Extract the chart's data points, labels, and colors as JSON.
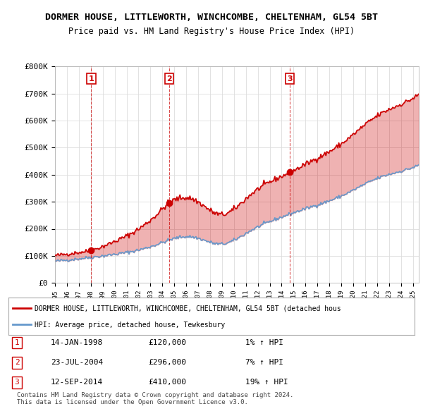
{
  "title_line1": "DORMER HOUSE, LITTLEWORTH, WINCHCOMBE, CHELTENHAM, GL54 5BT",
  "title_line2": "Price paid vs. HM Land Registry's House Price Index (HPI)",
  "ylabel": "",
  "ylim": [
    0,
    800000
  ],
  "yticks": [
    0,
    100000,
    200000,
    300000,
    400000,
    500000,
    600000,
    700000,
    800000
  ],
  "ytick_labels": [
    "£0",
    "£100K",
    "£200K",
    "£300K",
    "£400K",
    "£500K",
    "£600K",
    "£700K",
    "£800K"
  ],
  "sale_dates": [
    1998.04,
    2004.56,
    2014.7
  ],
  "sale_prices": [
    120000,
    296000,
    410000
  ],
  "sale_labels": [
    "1",
    "2",
    "3"
  ],
  "hpi_color": "#6699cc",
  "price_color": "#cc0000",
  "sale_marker_color": "#cc0000",
  "vline_color": "#cc0000",
  "legend_line1": "DORMER HOUSE, LITTLEWORTH, WINCHCOMBE, CHELTENHAM, GL54 5BT (detached hous",
  "legend_line2": "HPI: Average price, detached house, Tewkesbury",
  "table_rows": [
    [
      "1",
      "14-JAN-1998",
      "£120,000",
      "1% ↑ HPI"
    ],
    [
      "2",
      "23-JUL-2004",
      "£296,000",
      "7% ↑ HPI"
    ],
    [
      "3",
      "12-SEP-2014",
      "£410,000",
      "19% ↑ HPI"
    ]
  ],
  "footer": "Contains HM Land Registry data © Crown copyright and database right 2024.\nThis data is licensed under the Open Government Licence v3.0.",
  "background_color": "#ffffff",
  "grid_color": "#dddddd"
}
